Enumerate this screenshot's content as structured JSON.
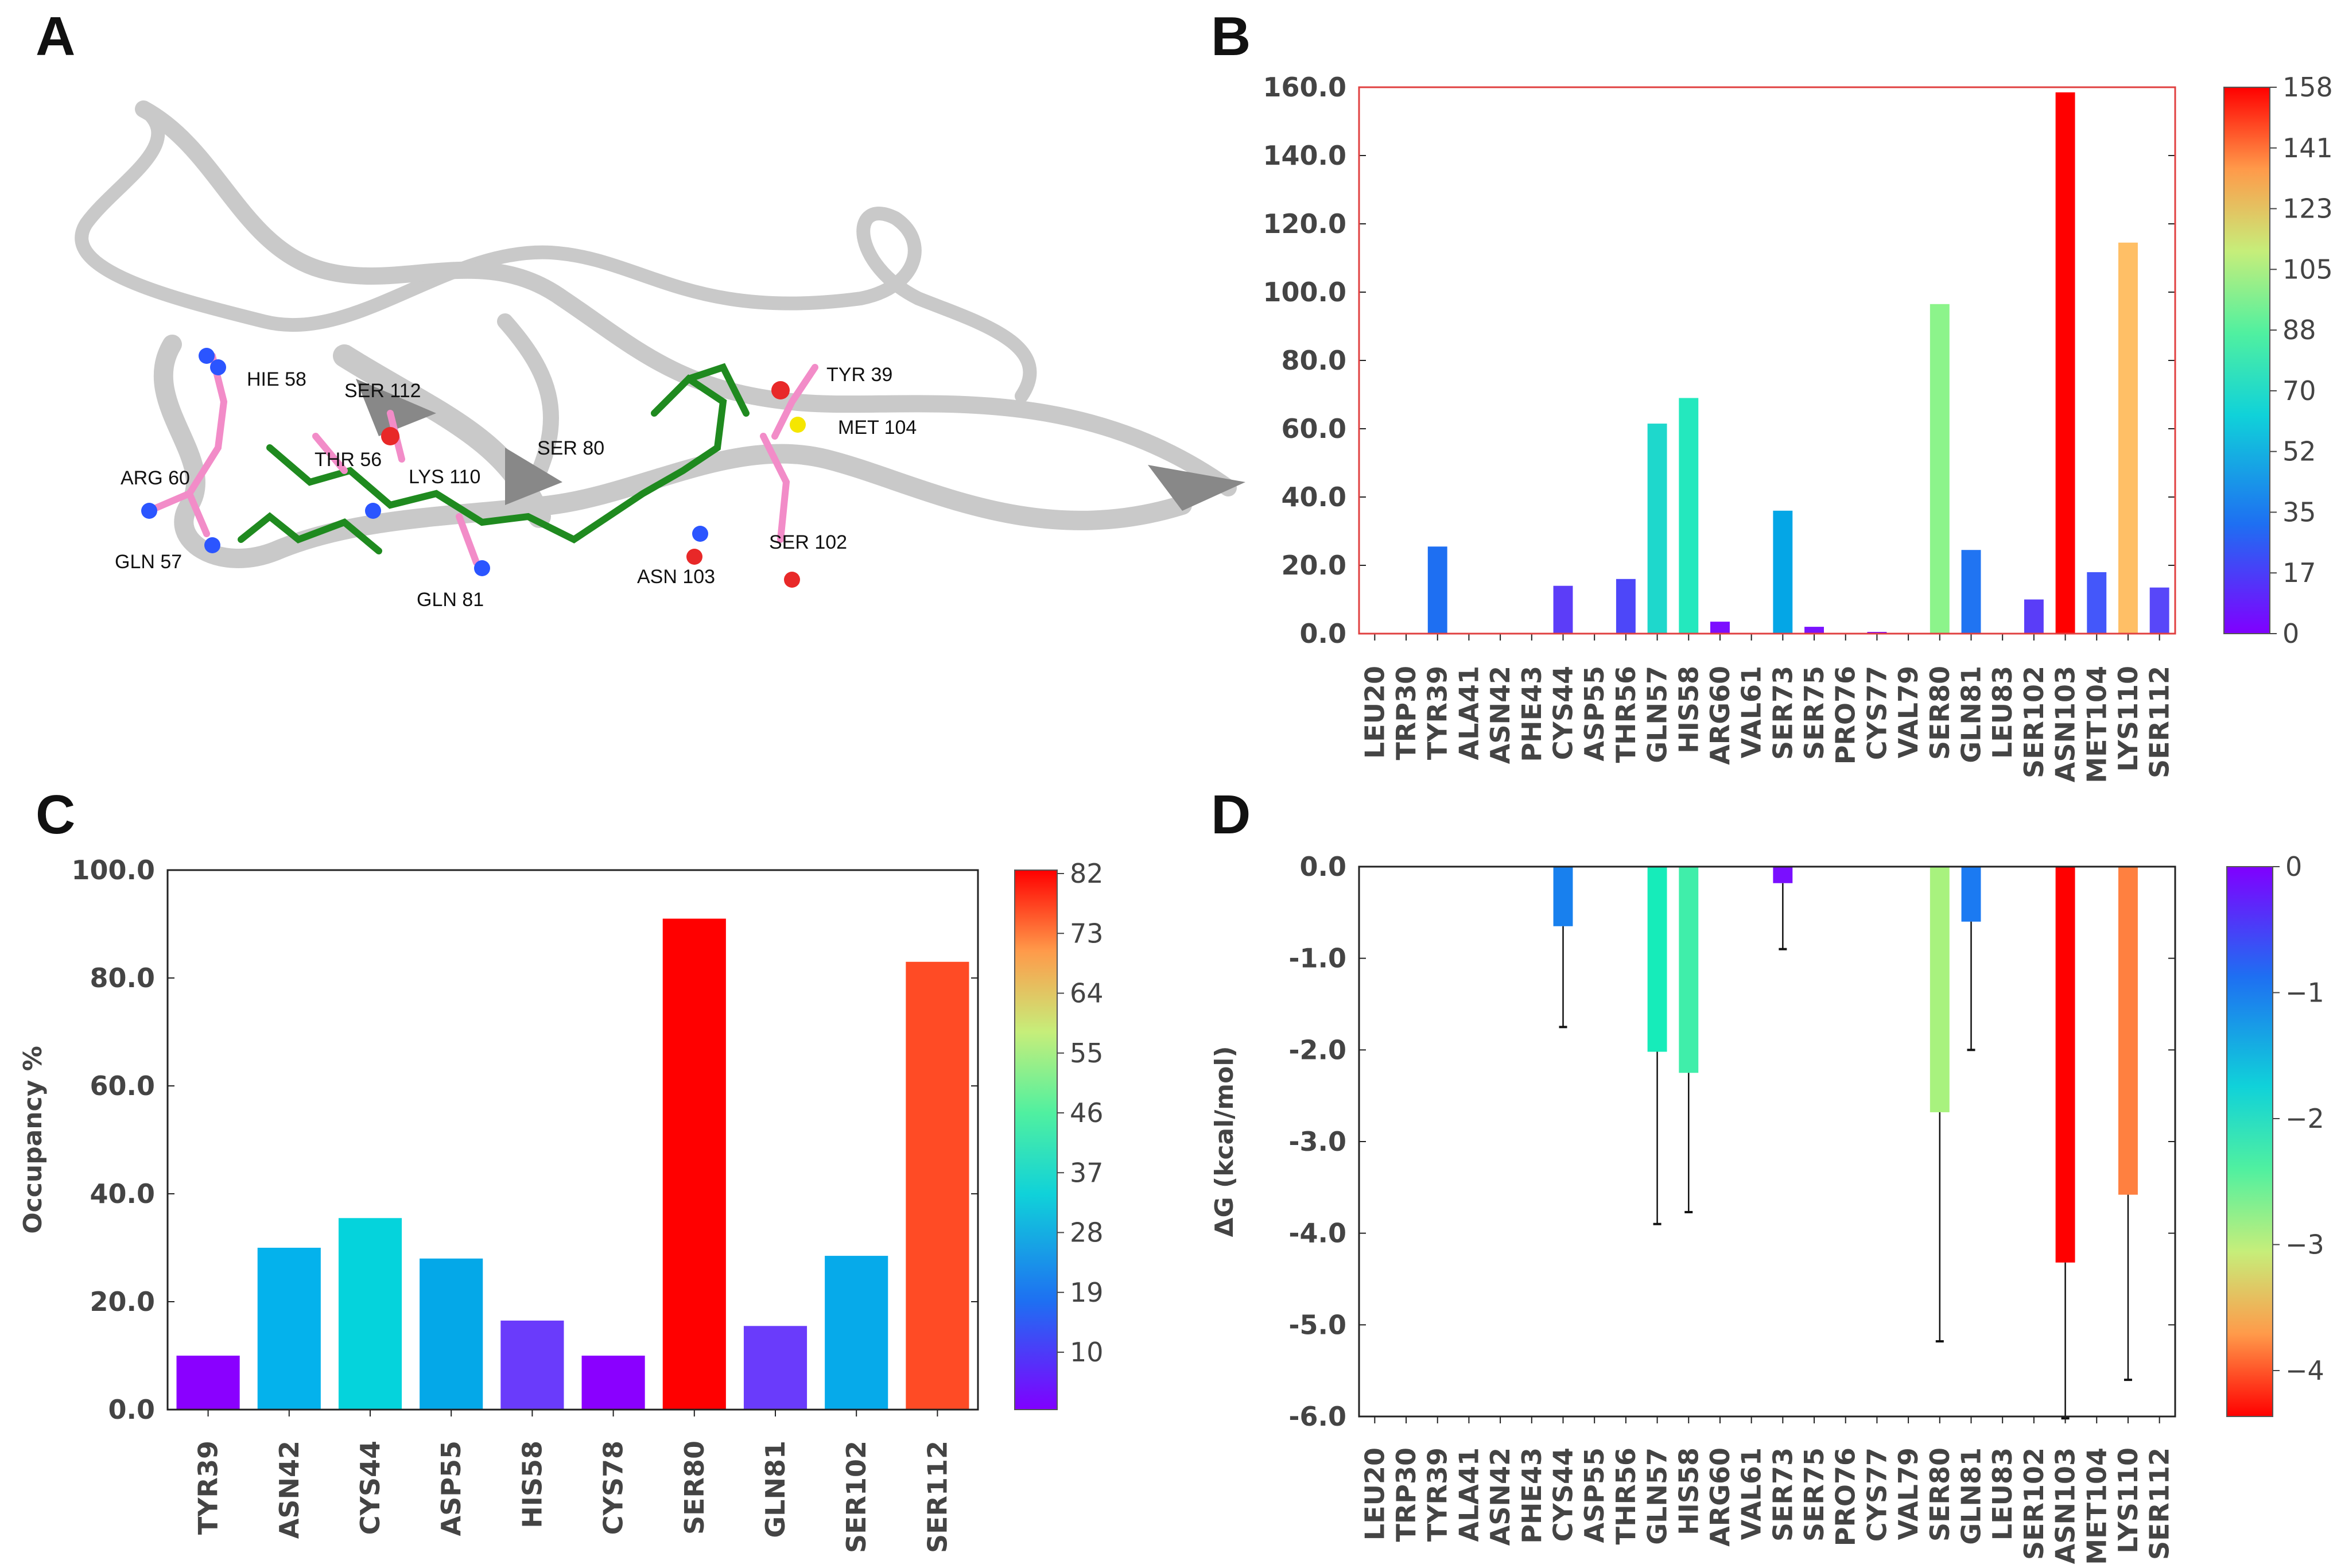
{
  "panels": {
    "A": {
      "letter": "A",
      "labels": [
        "HIE 58",
        "TYR 39",
        "SER 112",
        "THR 56",
        "MET 104",
        "ARG 60",
        "LYS 110",
        "SER 80",
        "GLN 57",
        "SER 102",
        "ASN 103",
        "GLN 81"
      ]
    },
    "B": {
      "letter": "B"
    },
    "C": {
      "letter": "C"
    },
    "D": {
      "letter": "D"
    }
  },
  "colorbars": {
    "B": {
      "ticks": [
        "158",
        "141",
        "123",
        "105",
        "88",
        "70",
        "52",
        "35",
        "17",
        "0"
      ]
    },
    "C": {
      "ticks": [
        "82",
        "73",
        "64",
        "55",
        "46",
        "37",
        "28",
        "19",
        "10"
      ]
    },
    "D": {
      "ticks": [
        "0",
        "−1",
        "−2",
        "−3",
        "−4"
      ]
    }
  },
  "chart_data": [
    {
      "id": "B",
      "type": "bar",
      "title": "",
      "xlabel": "",
      "ylabel": "",
      "ylim": [
        0,
        160
      ],
      "yticks": [
        "0.0",
        "20.0",
        "40.0",
        "60.0",
        "80.0",
        "100.0",
        "120.0",
        "140.0",
        "160.0"
      ],
      "categories": [
        "LEU20",
        "TRP30",
        "TYR39",
        "ALA41",
        "ASN42",
        "PHE43",
        "CYS44",
        "ASP55",
        "THR56",
        "GLN57",
        "HIS58",
        "ARG60",
        "VAL61",
        "SER73",
        "SER75",
        "PRO76",
        "CYS77",
        "VAL79",
        "SER80",
        "GLN81",
        "LEU83",
        "SER102",
        "ASN103",
        "MET104",
        "LYS110",
        "SER112"
      ],
      "values": [
        0,
        0,
        25.5,
        0,
        0,
        0,
        14,
        0,
        16,
        61.5,
        69,
        3.5,
        0,
        36,
        2,
        0,
        0.5,
        0,
        96.5,
        24.5,
        0,
        10,
        158.5,
        18,
        114.5,
        13.5
      ],
      "colors": [
        "#8000ff",
        "#8000ff",
        "#1e6ff2",
        "#8000ff",
        "#8000ff",
        "#8000ff",
        "#5c3df8",
        "#8000ff",
        "#4d47f9",
        "#1ed8cc",
        "#24e8be",
        "#7c0eff",
        "#8000ff",
        "#04a6e6",
        "#7a13ff",
        "#8000ff",
        "#7e0aff",
        "#8000ff",
        "#8cf48b",
        "#2074f2",
        "#8000ff",
        "#5a3df8",
        "#ff0000",
        "#4457fa",
        "#ffbf66",
        "#5847f9"
      ]
    },
    {
      "id": "C",
      "type": "bar",
      "title": "",
      "xlabel": "",
      "ylabel": "Occupancy %",
      "ylim": [
        0,
        100
      ],
      "yticks": [
        "0.0",
        "20.0",
        "40.0",
        "60.0",
        "80.0",
        "100.0"
      ],
      "categories": [
        "TYR39",
        "ASN42",
        "CYS44",
        "ASP55",
        "HIS58",
        "CYS78",
        "SER80",
        "GLN81",
        "SER102",
        "SER112"
      ],
      "values": [
        10,
        30,
        35.5,
        28,
        16.5,
        10,
        91,
        15.5,
        28.5,
        83
      ],
      "colors": [
        "#8a00ff",
        "#04b2ec",
        "#05d3dc",
        "#04a8e8",
        "#6a3bfb",
        "#8a00ff",
        "#ff0000",
        "#6a3bfb",
        "#06aaea",
        "#ff4b25"
      ]
    },
    {
      "id": "D",
      "type": "bar",
      "title": "",
      "xlabel": "",
      "ylabel": "ΔG (kcal/mol)",
      "ylim": [
        -6,
        0
      ],
      "yticks": [
        "0.0",
        "-1.0",
        "-2.0",
        "-3.0",
        "-4.0",
        "-5.0",
        "-6.0"
      ],
      "categories": [
        "LEU20",
        "TRP30",
        "TYR39",
        "ALA41",
        "ASN42",
        "PHE43",
        "CYS44",
        "ASP55",
        "THR56",
        "GLN57",
        "HIS58",
        "ARG60",
        "VAL61",
        "SER73",
        "SER75",
        "PRO76",
        "CYS77",
        "VAL79",
        "SER80",
        "GLN81",
        "LEU83",
        "SER102",
        "ASN103",
        "MET104",
        "LYS110",
        "SER112"
      ],
      "values": [
        0,
        0,
        0,
        0,
        0,
        0,
        -0.65,
        0,
        0,
        -2.02,
        -2.25,
        0,
        0,
        -0.18,
        0,
        0,
        0,
        0,
        -2.68,
        -0.6,
        0,
        0,
        -4.32,
        0,
        -3.58,
        0
      ],
      "errors": [
        0,
        0,
        0,
        0,
        0,
        0,
        1.1,
        0,
        0,
        1.88,
        1.52,
        0,
        0,
        0.72,
        0,
        0,
        0,
        0,
        2.5,
        1.4,
        0,
        0,
        1.7,
        0,
        2.02,
        0
      ],
      "colors": [
        "#8000ff",
        "#8000ff",
        "#8000ff",
        "#8000ff",
        "#8000ff",
        "#8000ff",
        "#1880ee",
        "#8000ff",
        "#8000ff",
        "#16ecba",
        "#40eeaa",
        "#8000ff",
        "#8000ff",
        "#7a0fff",
        "#8000ff",
        "#8000ff",
        "#8000ff",
        "#8000ff",
        "#a8f27e",
        "#1b7af2",
        "#8000ff",
        "#8000ff",
        "#ff0000",
        "#8000ff",
        "#ff8040",
        "#8000ff"
      ]
    }
  ]
}
